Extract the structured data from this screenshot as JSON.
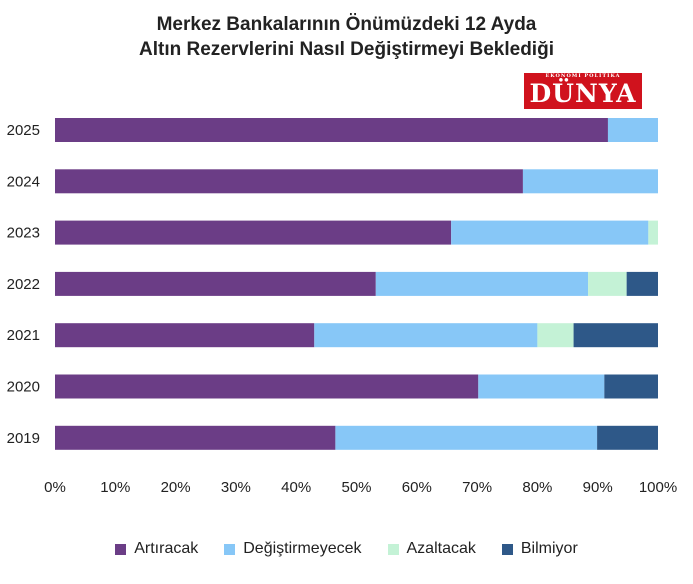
{
  "chart_data": {
    "type": "bar",
    "orientation": "horizontal",
    "stacked": true,
    "title_lines": [
      "Merkez Bankalarının Önümüzdeki 12 Ayda",
      "Altın Rezervlerini Nasıl Değiştirmeyi Beklediği"
    ],
    "categories": [
      "2025",
      "2024",
      "2023",
      "2022",
      "2021",
      "2020",
      "2019"
    ],
    "series": [
      {
        "name": "Artıracak",
        "color": "#6b3d86",
        "values": [
          91.7,
          77.6,
          65.7,
          53.2,
          43.0,
          70.2,
          46.5
        ]
      },
      {
        "name": "Değiştirmeyecek",
        "color": "#87c7f7",
        "values": [
          8.3,
          22.4,
          32.7,
          35.2,
          37.0,
          20.9,
          43.4
        ]
      },
      {
        "name": "Azaltacak",
        "color": "#c4f2d6",
        "values": [
          0.0,
          0.0,
          1.6,
          6.4,
          6.0,
          0.0,
          0.0
        ]
      },
      {
        "name": "Bilmiyor",
        "color": "#2e5888",
        "values": [
          0.0,
          0.0,
          0.0,
          5.2,
          14.0,
          8.9,
          10.1
        ]
      }
    ],
    "xlim": [
      0,
      100
    ],
    "x_ticks": [
      "0%",
      "10%",
      "20%",
      "30%",
      "40%",
      "50%",
      "60%",
      "70%",
      "80%",
      "90%",
      "100%"
    ],
    "grid": false,
    "legend_position": "bottom"
  },
  "logo": {
    "tagline": "EKONOMİ POLİTİKA",
    "name": "DÜNYA",
    "color": "#d0121d"
  }
}
